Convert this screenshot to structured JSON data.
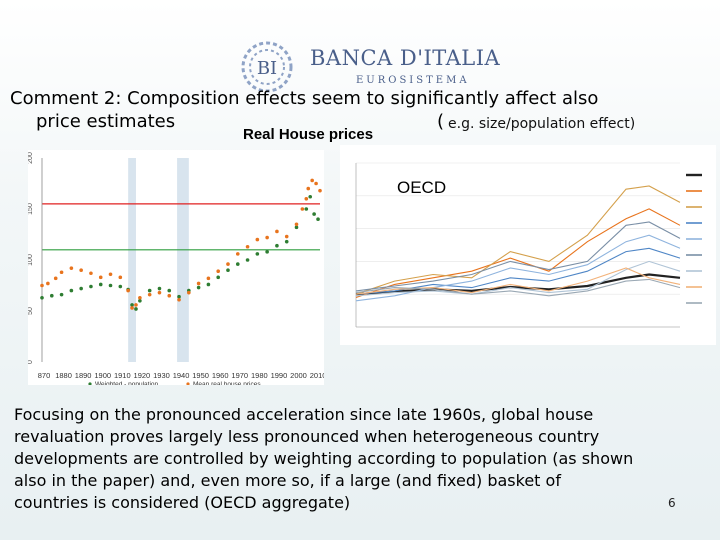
{
  "logo": {
    "name": "BANCA D'ITALIA",
    "sub": "EUROSISTEMA",
    "mark": "BI"
  },
  "title": {
    "line1": "Comment 2: Composition effects seem to significantly affect also",
    "line2": "price estimates",
    "paren": "(",
    "note": "e.g. size/population effect)"
  },
  "left_chart": {
    "title": "Real House prices",
    "y_ticks": [
      "0",
      "50",
      "100",
      "150",
      "200"
    ],
    "x_ticks": [
      "870",
      "1880",
      "1890",
      "1900",
      "1910",
      "1920",
      "1930",
      "1940",
      "1950",
      "1960",
      "1970",
      "1980",
      "1990",
      "2000",
      "2010"
    ],
    "legend": [
      "Weighted - population",
      "Mean real house prices"
    ]
  },
  "right_chart": {
    "label": "OECD"
  },
  "chart_data": [
    {
      "type": "scatter",
      "title": "Real House prices",
      "xlim": [
        1870,
        2012
      ],
      "ylim": [
        0,
        200
      ],
      "reference_lines": [
        {
          "y": 155,
          "color": "#e02020"
        },
        {
          "y": 110,
          "color": "#2e9e3e"
        }
      ],
      "shaded_periods": [
        [
          1914,
          1918
        ],
        [
          1939,
          1945
        ]
      ],
      "series": [
        {
          "name": "Weighted - population",
          "color": "#2e7d32",
          "points": [
            [
              1870,
              63
            ],
            [
              1875,
              65
            ],
            [
              1880,
              66
            ],
            [
              1885,
              70
            ],
            [
              1890,
              72
            ],
            [
              1895,
              74
            ],
            [
              1900,
              76
            ],
            [
              1905,
              75
            ],
            [
              1910,
              74
            ],
            [
              1914,
              71
            ],
            [
              1916,
              56
            ],
            [
              1918,
              52
            ],
            [
              1920,
              60
            ],
            [
              1925,
              70
            ],
            [
              1930,
              72
            ],
            [
              1935,
              70
            ],
            [
              1940,
              64
            ],
            [
              1945,
              70
            ],
            [
              1950,
              73
            ],
            [
              1955,
              76
            ],
            [
              1960,
              83
            ],
            [
              1965,
              90
            ],
            [
              1970,
              96
            ],
            [
              1975,
              100
            ],
            [
              1980,
              106
            ],
            [
              1985,
              108
            ],
            [
              1990,
              114
            ],
            [
              1995,
              118
            ],
            [
              2000,
              132
            ],
            [
              2005,
              150
            ],
            [
              2007,
              162
            ],
            [
              2009,
              145
            ],
            [
              2011,
              140
            ]
          ]
        },
        {
          "name": "Mean real house prices",
          "color": "#e8741e",
          "points": [
            [
              1870,
              75
            ],
            [
              1873,
              77
            ],
            [
              1877,
              82
            ],
            [
              1880,
              88
            ],
            [
              1885,
              92
            ],
            [
              1890,
              90
            ],
            [
              1895,
              87
            ],
            [
              1900,
              83
            ],
            [
              1905,
              86
            ],
            [
              1910,
              83
            ],
            [
              1914,
              70
            ],
            [
              1916,
              53
            ],
            [
              1918,
              56
            ],
            [
              1920,
              63
            ],
            [
              1925,
              66
            ],
            [
              1930,
              68
            ],
            [
              1935,
              65
            ],
            [
              1940,
              61
            ],
            [
              1945,
              68
            ],
            [
              1950,
              77
            ],
            [
              1955,
              82
            ],
            [
              1960,
              89
            ],
            [
              1965,
              96
            ],
            [
              1970,
              106
            ],
            [
              1975,
              113
            ],
            [
              1980,
              120
            ],
            [
              1985,
              122
            ],
            [
              1990,
              128
            ],
            [
              1995,
              123
            ],
            [
              2000,
              135
            ],
            [
              2003,
              150
            ],
            [
              2005,
              160
            ],
            [
              2006,
              170
            ],
            [
              2008,
              178
            ],
            [
              2010,
              175
            ],
            [
              2012,
              168
            ]
          ]
        }
      ]
    },
    {
      "type": "line",
      "title": "OECD",
      "xlim": [
        1970,
        2012
      ],
      "ylim": [
        0,
        500
      ],
      "series": [
        {
          "name": "",
          "color": "#222222",
          "values": [
            [
              1970,
              100
            ],
            [
              1975,
              108
            ],
            [
              1980,
              115
            ],
            [
              1985,
              110
            ],
            [
              1990,
              122
            ],
            [
              1995,
              115
            ],
            [
              2000,
              125
            ],
            [
              2005,
              150
            ],
            [
              2008,
              160
            ],
            [
              2012,
              150
            ]
          ]
        },
        {
          "name": "",
          "color": "#e8741e",
          "values": [
            [
              1970,
              90
            ],
            [
              1975,
              130
            ],
            [
              1980,
              150
            ],
            [
              1985,
              170
            ],
            [
              1990,
              210
            ],
            [
              1995,
              170
            ],
            [
              2000,
              260
            ],
            [
              2005,
              330
            ],
            [
              2008,
              360
            ],
            [
              2012,
              310
            ]
          ]
        },
        {
          "name": "",
          "color": "#d4a04c",
          "values": [
            [
              1970,
              100
            ],
            [
              1975,
              140
            ],
            [
              1980,
              160
            ],
            [
              1985,
              150
            ],
            [
              1990,
              230
            ],
            [
              1995,
              200
            ],
            [
              2000,
              280
            ],
            [
              2005,
              420
            ],
            [
              2008,
              430
            ],
            [
              2012,
              380
            ]
          ]
        },
        {
          "name": "",
          "color": "#4f86c6",
          "values": [
            [
              1970,
              100
            ],
            [
              1975,
              110
            ],
            [
              1980,
              130
            ],
            [
              1985,
              120
            ],
            [
              1990,
              150
            ],
            [
              1995,
              140
            ],
            [
              2000,
              170
            ],
            [
              2005,
              230
            ],
            [
              2008,
              240
            ],
            [
              2012,
              210
            ]
          ]
        },
        {
          "name": "",
          "color": "#8fb4de",
          "values": [
            [
              1970,
              80
            ],
            [
              1975,
              95
            ],
            [
              1980,
              120
            ],
            [
              1985,
              140
            ],
            [
              1990,
              180
            ],
            [
              1995,
              160
            ],
            [
              2000,
              190
            ],
            [
              2005,
              260
            ],
            [
              2008,
              280
            ],
            [
              2012,
              240
            ]
          ]
        },
        {
          "name": "",
          "color": "#7a8fa6",
          "values": [
            [
              1970,
              110
            ],
            [
              1975,
              125
            ],
            [
              1980,
              140
            ],
            [
              1985,
              160
            ],
            [
              1990,
              200
            ],
            [
              1995,
              175
            ],
            [
              2000,
              200
            ],
            [
              2005,
              310
            ],
            [
              2008,
              320
            ],
            [
              2012,
              270
            ]
          ]
        },
        {
          "name": "",
          "color": "#b0c4d6",
          "values": [
            [
              1970,
              95
            ],
            [
              1975,
              105
            ],
            [
              1980,
              110
            ],
            [
              1985,
              100
            ],
            [
              1990,
              120
            ],
            [
              1995,
              105
            ],
            [
              2000,
              115
            ],
            [
              2005,
              175
            ],
            [
              2008,
              200
            ],
            [
              2012,
              170
            ]
          ]
        },
        {
          "name": "",
          "color": "#f2b27a",
          "values": [
            [
              1970,
              100
            ],
            [
              1975,
              115
            ],
            [
              1980,
              120
            ],
            [
              1985,
              105
            ],
            [
              1990,
              130
            ],
            [
              1995,
              110
            ],
            [
              2000,
              140
            ],
            [
              2005,
              180
            ],
            [
              2008,
              150
            ],
            [
              2012,
              130
            ]
          ]
        },
        {
          "name": "",
          "color": "#9aa8b4",
          "values": [
            [
              1970,
              105
            ],
            [
              1975,
              120
            ],
            [
              1980,
              115
            ],
            [
              1985,
              100
            ],
            [
              1990,
              110
            ],
            [
              1995,
              95
            ],
            [
              2000,
              110
            ],
            [
              2005,
              140
            ],
            [
              2008,
              145
            ],
            [
              2012,
              120
            ]
          ]
        }
      ]
    }
  ],
  "body": {
    "line1": "Focusing on the pronounced acceleration since late 1960s, global house",
    "line2": "revaluation proves largely less pronounced when heterogeneous country",
    "line3": "developments are controlled by weighting according to population (as shown",
    "line4": "also in the paper) and, even more so, if a large (and fixed) basket of",
    "line5": "countries is considered (OECD aggregate)"
  },
  "slide_number": "6"
}
